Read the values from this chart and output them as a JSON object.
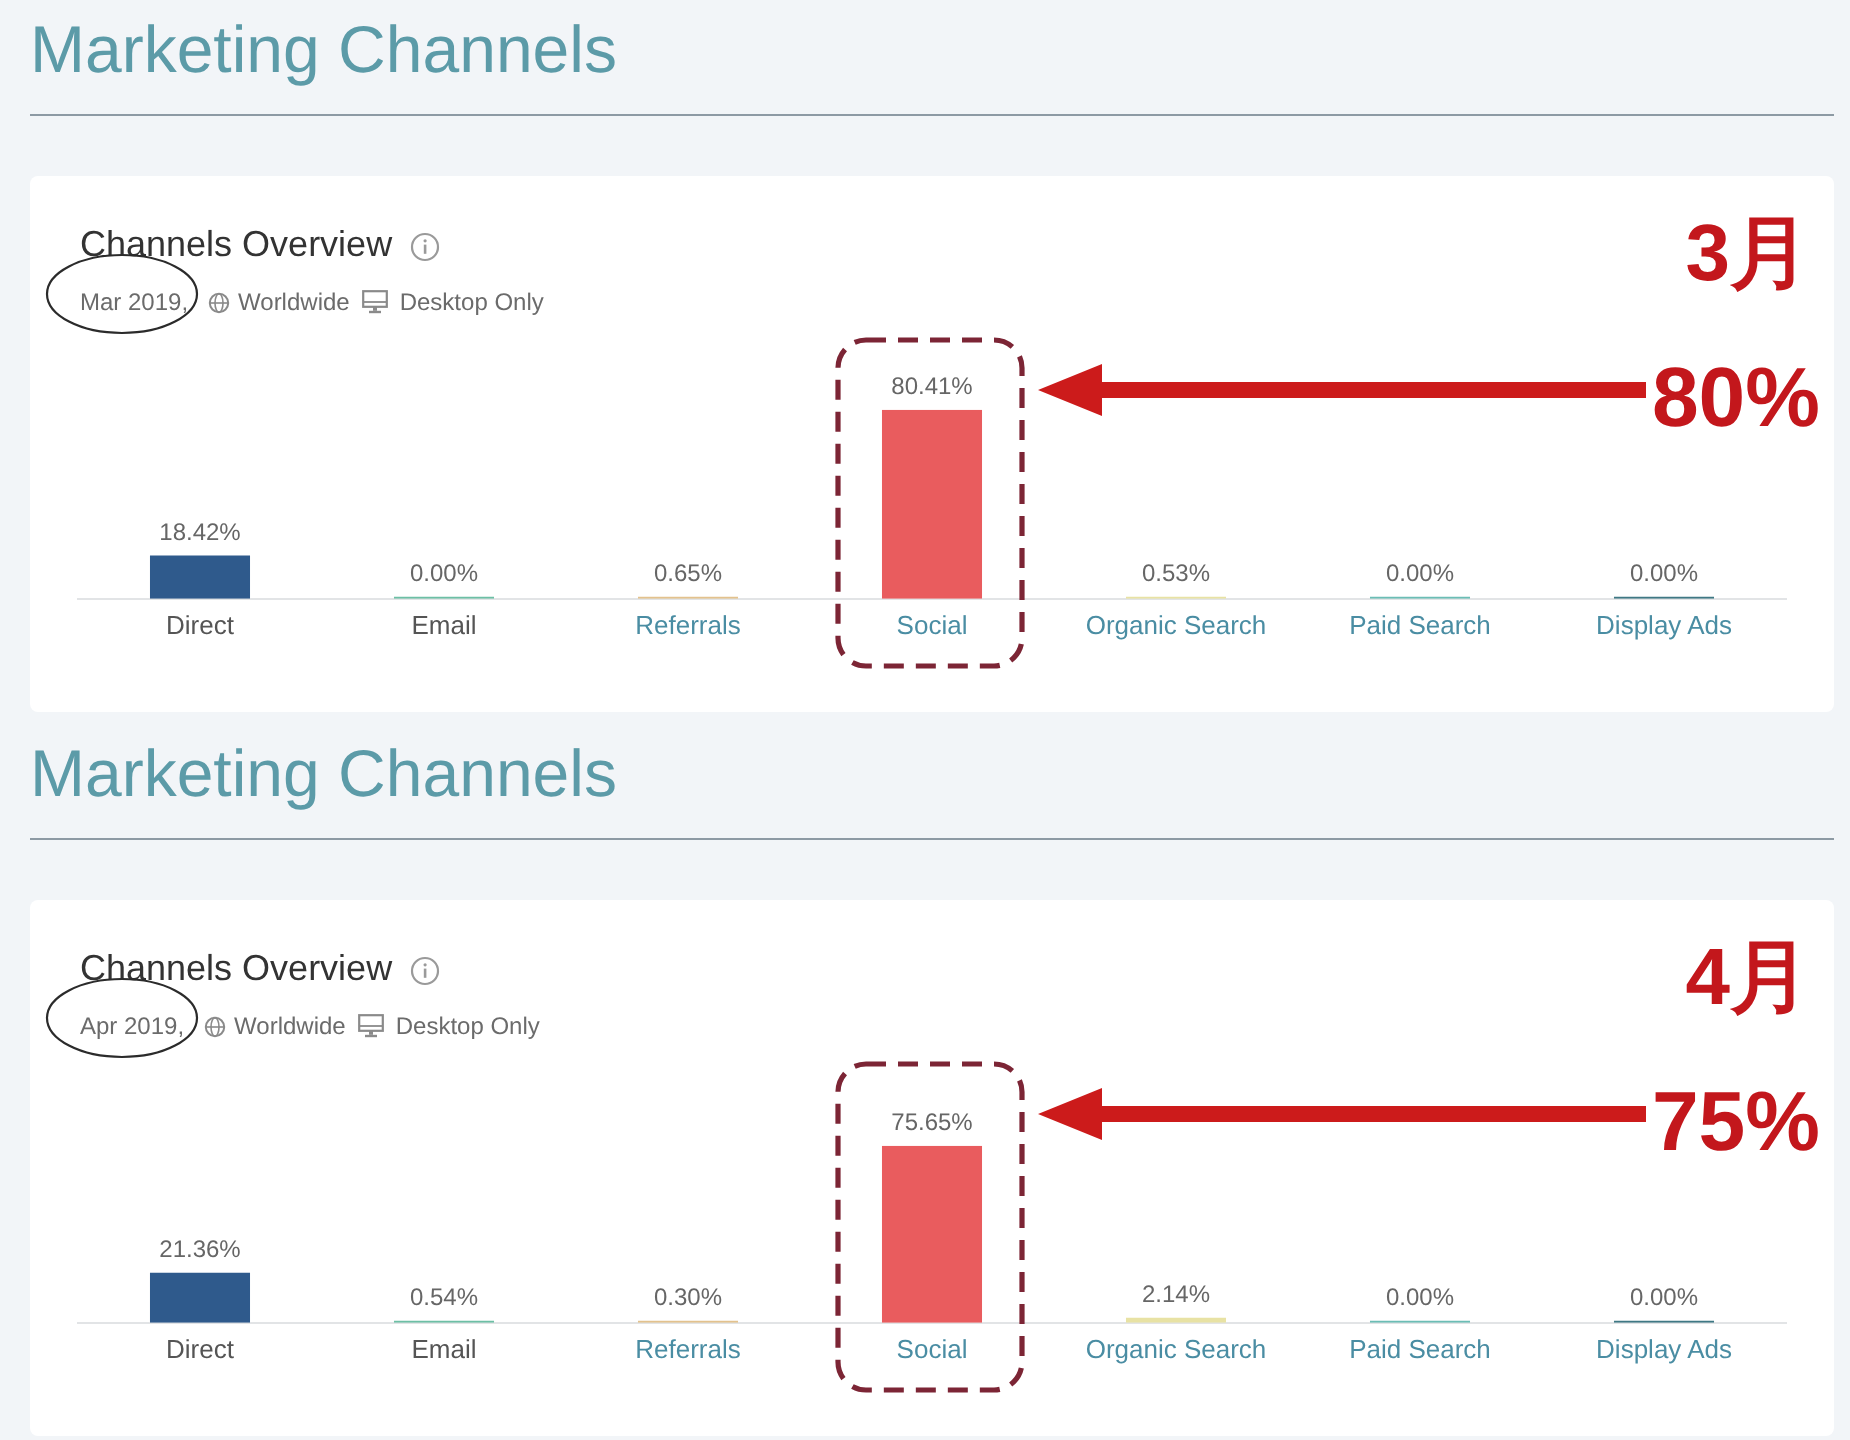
{
  "chart_data": [
    {
      "type": "bar",
      "title": "Marketing Channels",
      "subtitle": "Channels Overview",
      "annotations": [
        "Mar 2019,",
        "Worldwide",
        "Desktop Only",
        "3月",
        "80%"
      ],
      "categories": [
        "Direct",
        "Email",
        "Referrals",
        "Social",
        "Organic Search",
        "Paid Search",
        "Display Ads"
      ],
      "values": [
        18.42,
        0,
        0.65,
        80.41,
        0.53,
        0,
        0
      ],
      "value_labels": [
        "18.42%",
        "0.00%",
        "0.65%",
        "80.41%",
        "0.53%",
        "0.00%",
        "0.00%"
      ],
      "colors": [
        "#2f5a8c",
        "#6dbfa5",
        "#e3c28e",
        "#e95c5e",
        "#e8e2a4",
        "#6bbdb5",
        "#3f7884"
      ],
      "grid": false,
      "legend": false
    },
    {
      "type": "bar",
      "title": "Marketing Channels",
      "subtitle": "Channels Overview",
      "annotations": [
        "Apr 2019,",
        "Worldwide",
        "Desktop Only",
        "4月",
        "75%"
      ],
      "categories": [
        "Direct",
        "Email",
        "Referrals",
        "Social",
        "Organic Search",
        "Paid Search",
        "Display Ads"
      ],
      "values": [
        21.36,
        0.54,
        0.3,
        75.65,
        2.14,
        0,
        0
      ],
      "value_labels": [
        "21.36%",
        "0.54%",
        "0.30%",
        "75.65%",
        "2.14%",
        "0.00%",
        "0.00%"
      ],
      "colors": [
        "#2f5a8c",
        "#6dbfa5",
        "#e3c28e",
        "#e95c5e",
        "#e8e2a4",
        "#6bbdb5",
        "#3f7884"
      ],
      "grid": false,
      "legend": false
    }
  ]
}
